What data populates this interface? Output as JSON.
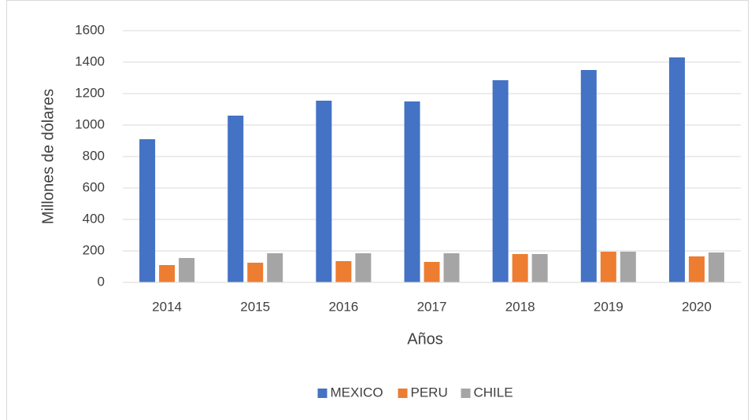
{
  "chart_data": {
    "type": "bar",
    "categories": [
      "2014",
      "2015",
      "2016",
      "2017",
      "2018",
      "2019",
      "2020"
    ],
    "series": [
      {
        "name": "MEXICO",
        "color": "#4472c4",
        "values": [
          910,
          1060,
          1155,
          1150,
          1285,
          1350,
          1430
        ]
      },
      {
        "name": "PERU",
        "color": "#ed7d31",
        "values": [
          110,
          125,
          135,
          130,
          180,
          195,
          165
        ]
      },
      {
        "name": "CHILE",
        "color": "#a5a5a5",
        "values": [
          155,
          185,
          185,
          185,
          180,
          195,
          190
        ]
      }
    ],
    "x_label": "Años",
    "y_label": "Millones de dólares",
    "ylim": [
      0,
      1600
    ],
    "yticks": [
      0,
      200,
      400,
      600,
      800,
      1000,
      1200,
      1400,
      1600
    ],
    "grid": true,
    "legend": "bottom"
  }
}
